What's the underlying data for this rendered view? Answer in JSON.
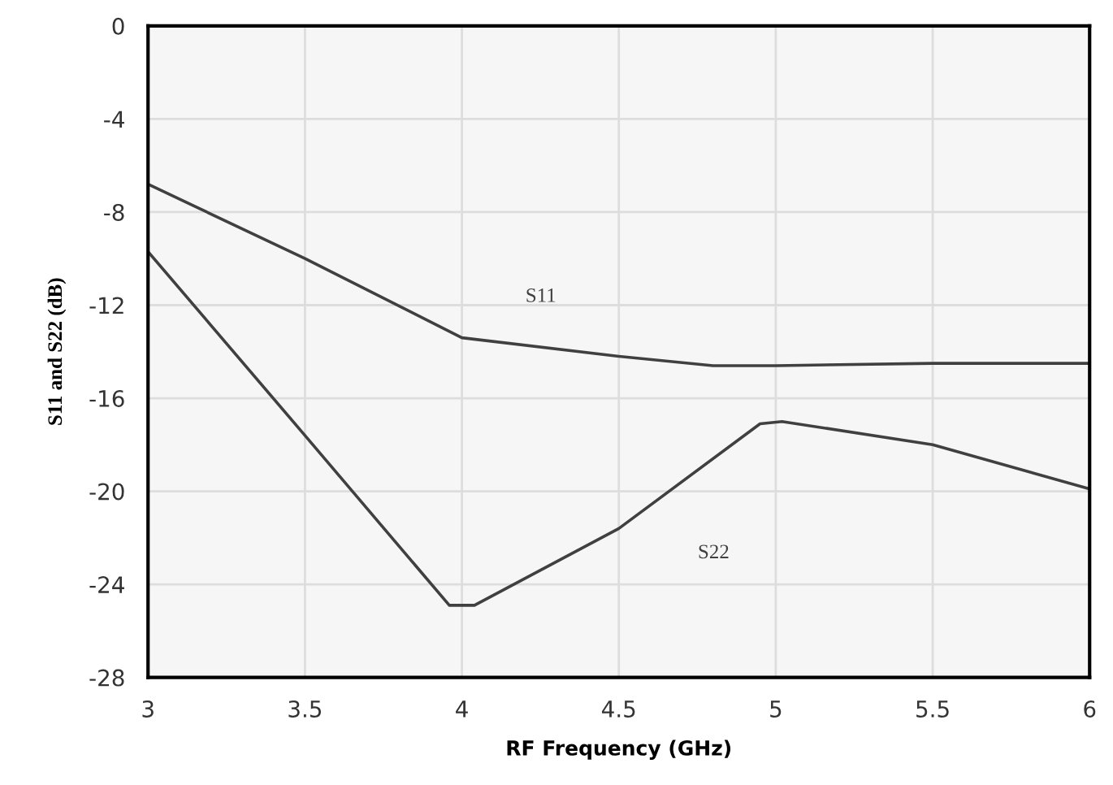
{
  "chart_data": {
    "type": "line",
    "xlabel": "RF Frequency (GHz)",
    "ylabel": "S11 and S22 (dB)",
    "series": [
      {
        "name": "S11",
        "color": "#404040",
        "x": [
          3,
          3.5,
          4,
          4.5,
          4.8,
          5,
          5.5,
          6
        ],
        "values": [
          -6.8,
          -10,
          -13.4,
          -14.2,
          -14.6,
          -14.6,
          -14.5,
          -14.5
        ]
      },
      {
        "name": "S22",
        "color": "#404040",
        "x": [
          3,
          3.5,
          3.96,
          4.04,
          4.5,
          4.95,
          5.02,
          5.5,
          6
        ],
        "values": [
          -9.7,
          -17.6,
          -24.9,
          -24.9,
          -21.6,
          -17.1,
          -17,
          -18,
          -19.9
        ]
      }
    ],
    "xlim": [
      3,
      6
    ],
    "xticks": [
      3,
      3.5,
      4,
      4.5,
      5,
      5.5,
      6
    ],
    "ylim": [
      -28,
      0
    ],
    "yticks": [
      -28,
      -24,
      -20,
      -16,
      -12,
      -8,
      -4,
      0
    ],
    "grid": true,
    "marker": "none",
    "line_style": "solid"
  }
}
